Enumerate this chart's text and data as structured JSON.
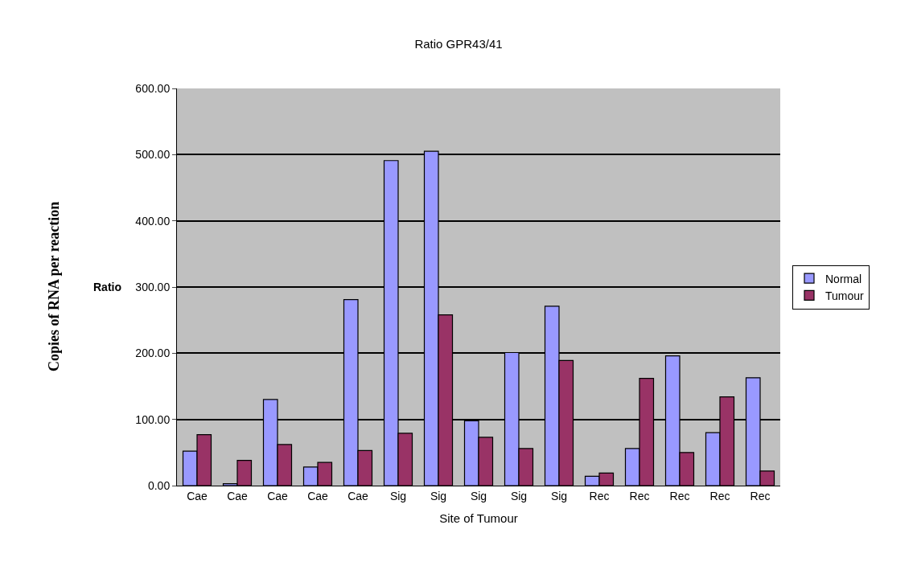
{
  "chart_data": {
    "type": "bar",
    "title": "Ratio GPR43/41",
    "xlabel": "Site of Tumour",
    "ylabel": "Ratio",
    "annotations": [
      "Copies of RNA per reaction"
    ],
    "categories": [
      "Cae",
      "Cae",
      "Cae",
      "Cae",
      "Cae",
      "Sig",
      "Sig",
      "Sig",
      "Sig",
      "Sig",
      "Rec",
      "Rec",
      "Rec",
      "Rec",
      "Rec"
    ],
    "series": [
      {
        "name": "Normal",
        "color": "#9999ff",
        "values": [
          52,
          3,
          130,
          28,
          281,
          491,
          505,
          98,
          201,
          271,
          14,
          56,
          196,
          80,
          163
        ]
      },
      {
        "name": "Tumour",
        "color": "#993366",
        "values": [
          77,
          38,
          62,
          35,
          53,
          79,
          258,
          73,
          56,
          189,
          19,
          162,
          50,
          134,
          22
        ]
      }
    ],
    "ylim": [
      0,
      600
    ],
    "yticks": [
      {
        "value": 0,
        "label": "0.00"
      },
      {
        "value": 100,
        "label": "100.00"
      },
      {
        "value": 200,
        "label": "200.00"
      },
      {
        "value": 300,
        "label": "300.00"
      },
      {
        "value": 400,
        "label": "400.00"
      },
      {
        "value": 500,
        "label": "500.00"
      },
      {
        "value": 600,
        "label": "600.00"
      }
    ],
    "grid": "y",
    "legend": "right"
  }
}
